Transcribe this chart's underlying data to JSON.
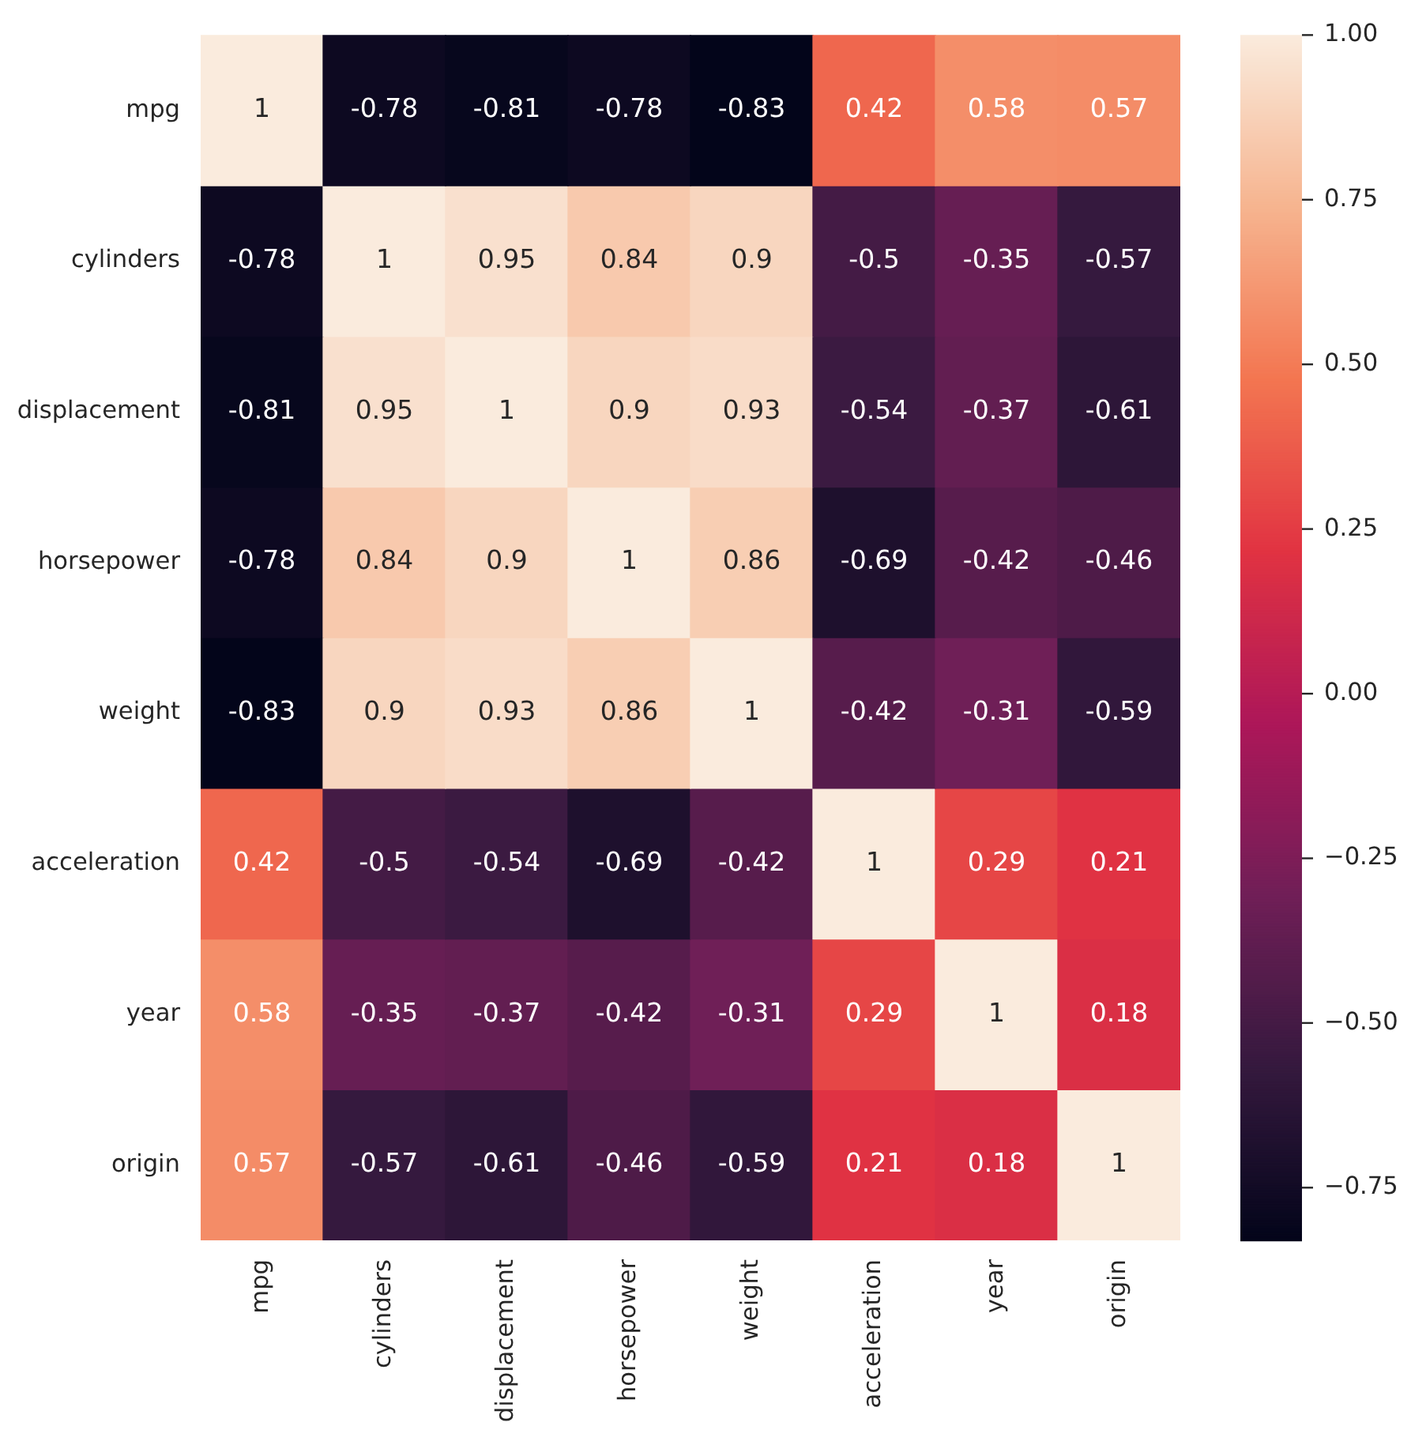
{
  "chart_data": {
    "type": "heatmap",
    "categories": [
      "mpg",
      "cylinders",
      "displacement",
      "horsepower",
      "weight",
      "acceleration",
      "year",
      "origin"
    ],
    "y_categories": [
      "mpg",
      "cylinders",
      "displacement",
      "horsepower",
      "weight",
      "acceleration",
      "year",
      "origin"
    ],
    "cells": [
      [
        1,
        -0.78,
        -0.81,
        -0.78,
        -0.83,
        0.42,
        0.58,
        0.57
      ],
      [
        -0.78,
        1,
        0.95,
        0.84,
        0.9,
        -0.5,
        -0.35,
        -0.57
      ],
      [
        -0.81,
        0.95,
        1,
        0.9,
        0.93,
        -0.54,
        -0.37,
        -0.61
      ],
      [
        -0.78,
        0.84,
        0.9,
        1,
        0.86,
        -0.69,
        -0.42,
        -0.46
      ],
      [
        -0.83,
        0.9,
        0.93,
        0.86,
        1,
        -0.42,
        -0.31,
        -0.59
      ],
      [
        0.42,
        -0.5,
        -0.54,
        -0.69,
        -0.42,
        1,
        0.29,
        0.21
      ],
      [
        0.58,
        -0.35,
        -0.37,
        -0.42,
        -0.31,
        0.29,
        1,
        0.18
      ],
      [
        0.57,
        -0.57,
        -0.61,
        -0.46,
        -0.59,
        0.21,
        0.18,
        1
      ]
    ],
    "clim": [
      -0.83,
      1
    ],
    "cticks": [
      {
        "value": 1,
        "label": "1.00"
      },
      0.75,
      {
        "value": 0.5,
        "label": "0.50"
      },
      0.25,
      {
        "value": 0,
        "label": "0.00"
      },
      {
        "value": -0.25,
        "label": "−0.25"
      },
      {
        "value": -0.5,
        "label": "−0.50"
      },
      {
        "value": -0.75,
        "label": "−0.75"
      }
    ],
    "data_labels": true
  }
}
